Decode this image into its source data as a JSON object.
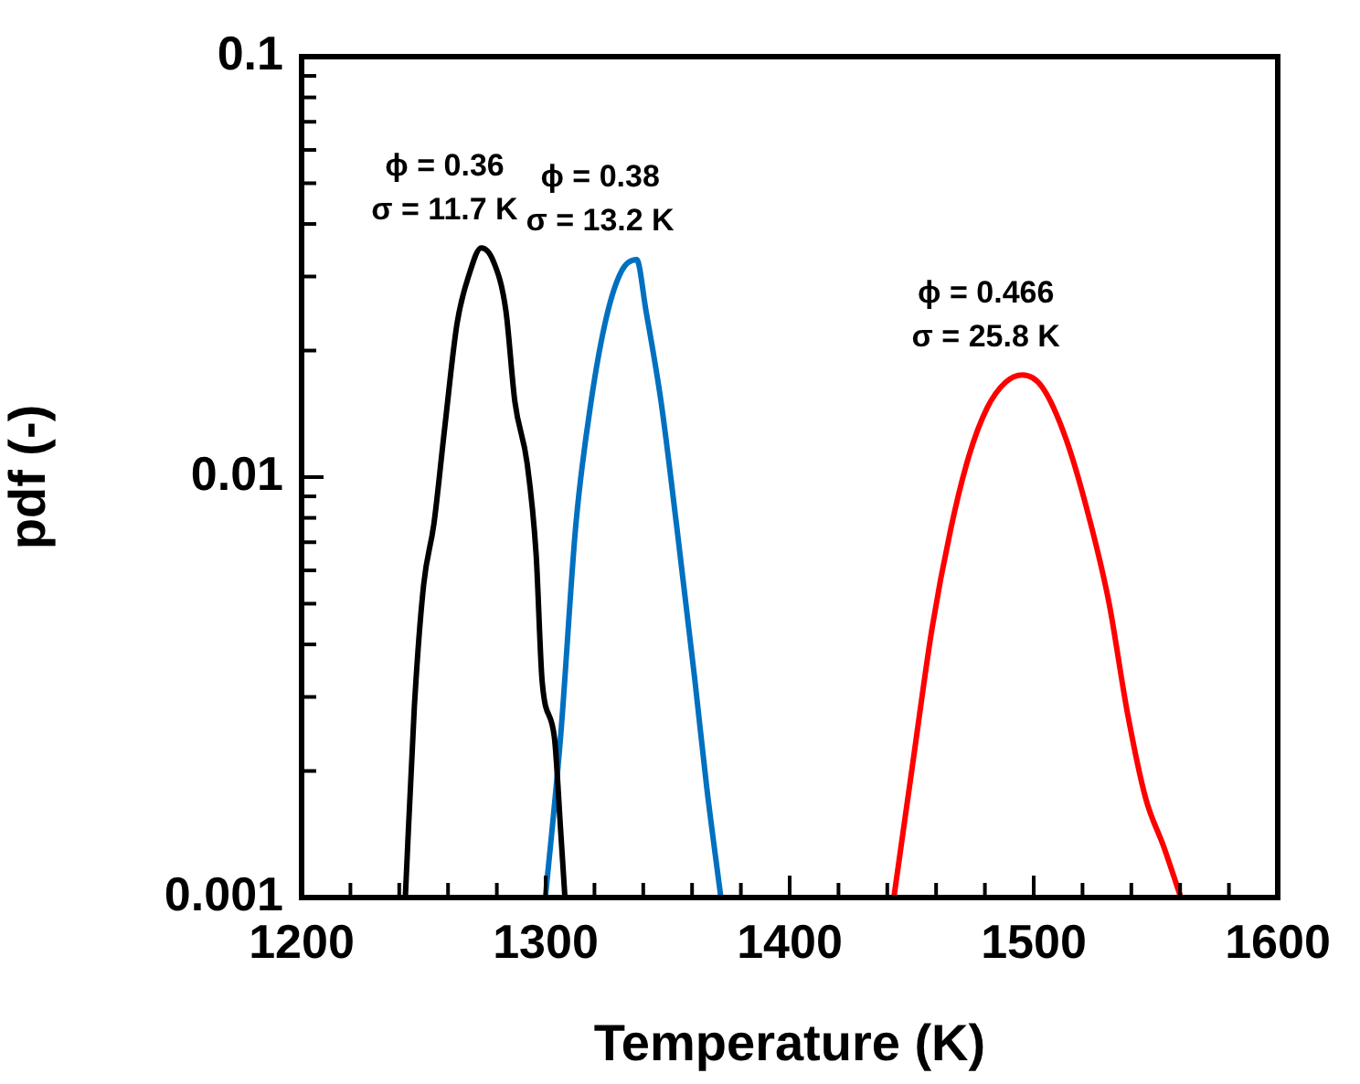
{
  "chart_data": {
    "type": "line",
    "xlabel": "Temperature (K)",
    "ylabel": "pdf (-)",
    "log": "y",
    "grid": false,
    "legend": false,
    "marker": "none",
    "line_style": "solid",
    "xlim": [
      1200,
      1600
    ],
    "xticks": [
      1200,
      {
        "value": 1220,
        "label": null
      },
      {
        "value": 1240,
        "label": null
      },
      {
        "value": 1260,
        "label": null
      },
      {
        "value": 1280,
        "label": null
      },
      1300,
      {
        "value": 1320,
        "label": null
      },
      {
        "value": 1340,
        "label": null
      },
      {
        "value": 1360,
        "label": null
      },
      {
        "value": 1380,
        "label": null
      },
      1400,
      {
        "value": 1420,
        "label": null
      },
      {
        "value": 1440,
        "label": null
      },
      {
        "value": 1460,
        "label": null
      },
      {
        "value": 1480,
        "label": null
      },
      1500,
      {
        "value": 1520,
        "label": null
      },
      {
        "value": 1540,
        "label": null
      },
      {
        "value": 1560,
        "label": null
      },
      {
        "value": 1580,
        "label": null
      },
      1600
    ],
    "ylim": [
      0.001,
      0.1
    ],
    "yticks": [
      0.001,
      {
        "value": 0.002,
        "label": null
      },
      {
        "value": 0.003,
        "label": null
      },
      {
        "value": 0.004,
        "label": null
      },
      {
        "value": 0.005,
        "label": null
      },
      {
        "value": 0.006,
        "label": null
      },
      {
        "value": 0.007,
        "label": null
      },
      {
        "value": 0.008,
        "label": null
      },
      {
        "value": 0.009,
        "label": null
      },
      0.01,
      {
        "value": 0.02,
        "label": null
      },
      {
        "value": 0.03,
        "label": null
      },
      {
        "value": 0.04,
        "label": null
      },
      {
        "value": 0.05,
        "label": null
      },
      {
        "value": 0.06,
        "label": null
      },
      {
        "value": 0.07,
        "label": null
      },
      {
        "value": 0.08,
        "label": null
      },
      {
        "value": 0.09,
        "label": null
      },
      0.1
    ],
    "series": [
      {
        "color": "#000000",
        "x": [
          1242.5,
          1246.2,
          1250,
          1254.2,
          1258.7,
          1263.7,
          1268.7,
          1273.6,
          1278.7,
          1283.7,
          1287.4,
          1292.4,
          1296.1,
          1298.6,
          1303.6,
          1306.1,
          1307.9
        ],
        "values": [
          0.001,
          0.00284,
          0.00554,
          0.00773,
          0.0132,
          0.0232,
          0.0304,
          0.0351,
          0.0325,
          0.0249,
          0.0151,
          0.0108,
          0.00655,
          0.00325,
          0.0024,
          0.00146,
          0.001
        ]
      },
      {
        "color": "#0070c0",
        "x": [
          1299.9,
          1306.1,
          1312.4,
          1318.6,
          1324.9,
          1331.1,
          1337.3,
          1341.1,
          1347.3,
          1353.6,
          1361,
          1366,
          1371.8
        ],
        "values": [
          0.001,
          0.0024,
          0.00773,
          0.0151,
          0.024,
          0.0309,
          0.0329,
          0.0249,
          0.0151,
          0.00773,
          0.00335,
          0.00183,
          0.001
        ]
      },
      {
        "color": "#ff0000",
        "x": [
          1442.7,
          1450.9,
          1458.4,
          1465.9,
          1473.4,
          1480.9,
          1488.4,
          1495.4,
          1503.4,
          1513.3,
          1523.4,
          1530.9,
          1538.4,
          1545.9,
          1553.3,
          1560.3
        ],
        "values": [
          0.001,
          0.00218,
          0.00439,
          0.00748,
          0.0112,
          0.0146,
          0.0168,
          0.0175,
          0.0164,
          0.0123,
          0.00773,
          0.00501,
          0.00275,
          0.00172,
          0.00132,
          0.001
        ]
      }
    ],
    "annotations": [
      "ϕ = 0.36\nσ = 11.7 K",
      "ϕ = 0.38\nσ = 13.2 K",
      "ϕ = 0.466\nσ = 25.8 K"
    ]
  }
}
